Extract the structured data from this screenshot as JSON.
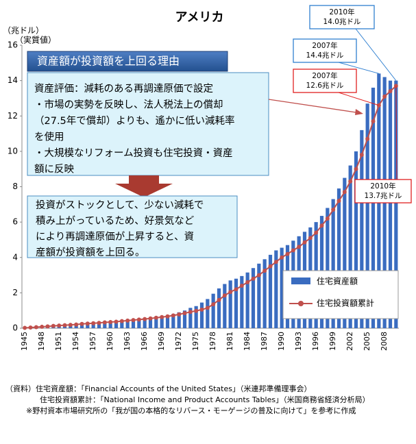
{
  "chart_data": {
    "type": "bar",
    "title": "アメリカ",
    "y_unit_labels": [
      "（兆ドル）",
      "（実質値）"
    ],
    "categories": [
      "1945",
      null,
      null,
      "1948",
      null,
      null,
      "1951",
      null,
      null,
      "1954",
      null,
      null,
      "1957",
      null,
      null,
      "1960",
      null,
      null,
      "1963",
      null,
      null,
      "1966",
      null,
      null,
      "1969",
      null,
      null,
      "1972",
      null,
      null,
      "1975",
      null,
      null,
      "1978",
      null,
      null,
      "1981",
      null,
      null,
      "1984",
      null,
      null,
      "1987",
      null,
      null,
      "1990",
      null,
      null,
      "1993",
      null,
      null,
      "1996",
      null,
      null,
      "1999",
      null,
      null,
      "2002",
      null,
      null,
      "2005",
      null,
      null,
      "2008",
      null,
      null
    ],
    "series": [
      {
        "name": "住宅資産額",
        "type": "bar",
        "color": "#3a6cc0",
        "values": [
          0.05,
          0.07,
          0.09,
          0.1,
          0.11,
          0.13,
          0.15,
          0.17,
          0.19,
          0.2,
          0.22,
          0.25,
          0.27,
          0.29,
          0.31,
          0.33,
          0.35,
          0.38,
          0.4,
          0.43,
          0.46,
          0.5,
          0.54,
          0.6,
          0.67,
          0.72,
          0.8,
          0.9,
          1.0,
          1.15,
          1.25,
          1.45,
          1.65,
          1.95,
          2.25,
          2.5,
          2.7,
          2.8,
          2.95,
          3.15,
          3.4,
          3.65,
          3.9,
          4.15,
          4.4,
          4.55,
          4.7,
          4.95,
          5.2,
          5.45,
          5.7,
          6.0,
          6.35,
          6.8,
          7.3,
          7.9,
          8.5,
          9.2,
          10.0,
          11.2,
          12.7,
          13.6,
          14.4,
          14.2,
          14.0,
          14.0
        ]
      },
      {
        "name": "住宅投資額累計",
        "type": "line",
        "color": "#c0504d",
        "values": [
          0.02,
          0.04,
          0.06,
          0.08,
          0.1,
          0.13,
          0.15,
          0.17,
          0.19,
          0.21,
          0.24,
          0.26,
          0.28,
          0.3,
          0.33,
          0.35,
          0.37,
          0.4,
          0.43,
          0.46,
          0.49,
          0.52,
          0.55,
          0.59,
          0.63,
          0.67,
          0.72,
          0.78,
          0.85,
          0.92,
          0.98,
          1.05,
          1.15,
          1.35,
          1.6,
          1.85,
          2.05,
          2.2,
          2.4,
          2.6,
          2.8,
          3.0,
          3.25,
          3.5,
          3.75,
          4.0,
          4.2,
          4.4,
          4.6,
          4.85,
          5.1,
          5.4,
          5.8,
          6.2,
          6.7,
          7.2,
          7.7,
          8.3,
          9.0,
          9.8,
          10.7,
          11.7,
          12.6,
          13.1,
          13.4,
          13.7
        ]
      }
    ],
    "ylim": [
      0,
      16
    ],
    "yticks": [
      0,
      2,
      4,
      6,
      8,
      10,
      12,
      14,
      16
    ],
    "grid": false,
    "legend": "lower right",
    "annotations": [
      {
        "lines": [
          "2010年",
          "14.0兆ドル"
        ],
        "color": "#2f7fd0"
      },
      {
        "lines": [
          "2007年",
          "14.4兆ドル"
        ],
        "color": "#2f7fd0"
      },
      {
        "lines": [
          "2007年",
          "12.6兆ドル"
        ],
        "color": "#e02020"
      },
      {
        "lines": [
          "2010年",
          "13.7兆ドル"
        ],
        "color": "#e02020"
      }
    ],
    "reason_heading": "資産額が投資額を上回る理由",
    "reason_lines": [
      "資産評価：減耗のある再調達原価で設定",
      "・市場の実勢を反映し、法人税法上の償却",
      "（27.5年で償却）よりも、遙かに低い減耗率",
      "を使用",
      "・大規模なリフォーム投資も住宅投資・資産",
      "額に反映"
    ],
    "conclusion_lines": [
      "投資がストックとして、少ない減耗で",
      "積み上がっているため、好景気など",
      "により再調達原価が上昇すると、資",
      "産額が投資額を上回る。"
    ],
    "sources": [
      "（資料）住宅資産額：「Financial Accounts of the United States」（米連邦準備理事会）",
      "住宅投資額累計：「National Income and Product Accounts Tables」（米国商務省経済分析局）",
      "※野村資本市場研究所の「我が国の本格的なリバース・モーゲージの普及に向けて」を参考に作成"
    ]
  }
}
